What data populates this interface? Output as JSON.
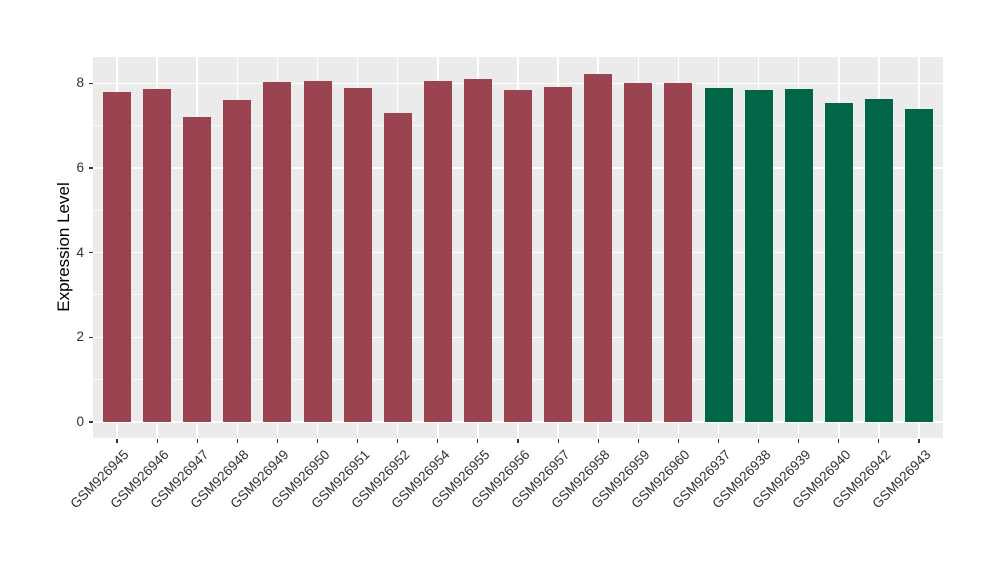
{
  "figure": {
    "background_color": "#FFFFFF",
    "panel_background_color": "#EBEBEB",
    "gridline_color": "#FFFFFF",
    "axis_text_color": "#303030",
    "axis_title_color": "#000000",
    "tick_color": "#333333"
  },
  "chart_data": {
    "type": "bar",
    "title": "",
    "xlabel": "",
    "ylabel": "Expression Level",
    "ylim": [
      0,
      8.66
    ],
    "y_ticks": [
      0,
      2,
      4,
      6,
      8
    ],
    "y_minor_ticks": [
      1,
      3,
      5,
      7
    ],
    "grid": "horizontal major+minor, vertical major at each category",
    "legend_position": "none",
    "x_tick_angle": 45,
    "groups": [
      {
        "name": "maroon",
        "color": "#9A4452"
      },
      {
        "name": "green",
        "color": "#016647"
      }
    ],
    "bars": [
      {
        "label": "GSM926945",
        "value": 7.8,
        "group": "maroon"
      },
      {
        "label": "GSM926946",
        "value": 7.87,
        "group": "maroon"
      },
      {
        "label": "GSM926947",
        "value": 7.21,
        "group": "maroon"
      },
      {
        "label": "GSM926948",
        "value": 7.6,
        "group": "maroon"
      },
      {
        "label": "GSM926949",
        "value": 8.04,
        "group": "maroon"
      },
      {
        "label": "GSM926950",
        "value": 8.06,
        "group": "maroon"
      },
      {
        "label": "GSM926951",
        "value": 7.9,
        "group": "maroon"
      },
      {
        "label": "GSM926952",
        "value": 7.3,
        "group": "maroon"
      },
      {
        "label": "GSM926954",
        "value": 8.05,
        "group": "maroon"
      },
      {
        "label": "GSM926955",
        "value": 8.09,
        "group": "maroon"
      },
      {
        "label": "GSM926956",
        "value": 7.85,
        "group": "maroon"
      },
      {
        "label": "GSM926957",
        "value": 7.91,
        "group": "maroon"
      },
      {
        "label": "GSM926958",
        "value": 8.22,
        "group": "maroon"
      },
      {
        "label": "GSM926959",
        "value": 8.01,
        "group": "maroon"
      },
      {
        "label": "GSM926960",
        "value": 8.01,
        "group": "maroon"
      },
      {
        "label": "GSM926937",
        "value": 7.88,
        "group": "green"
      },
      {
        "label": "GSM926938",
        "value": 7.83,
        "group": "green"
      },
      {
        "label": "GSM926939",
        "value": 7.87,
        "group": "green"
      },
      {
        "label": "GSM926940",
        "value": 7.54,
        "group": "green"
      },
      {
        "label": "GSM926942",
        "value": 7.63,
        "group": "green"
      },
      {
        "label": "GSM926943",
        "value": 7.39,
        "group": "green"
      }
    ]
  }
}
